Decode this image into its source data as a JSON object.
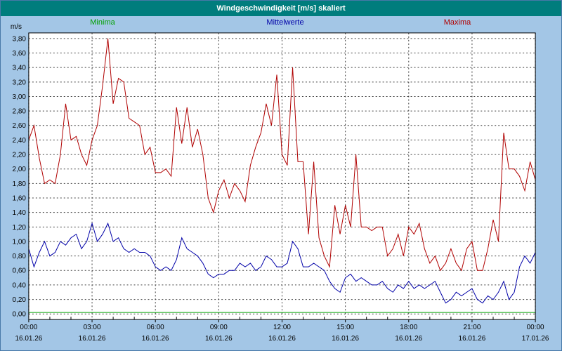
{
  "window": {
    "title": "Windgeschwindigkeit [m/s] skaliert"
  },
  "colors": {
    "titlebar_bg": "#007d7d",
    "titlebar_text": "#ffffff",
    "window_bg": "#a3c6e6",
    "window_border": "#4878a8",
    "plot_bg": "#ffffff",
    "frame": "#000000",
    "grid": "#404040",
    "minima": "#00a000",
    "mittelwerte": "#0000a8",
    "maxima": "#b00000",
    "tick_text": "#000000"
  },
  "chart_data": {
    "type": "line",
    "title": "Windgeschwindigkeit [m/s] skaliert",
    "ylabel_unit": "m/s",
    "ylim": [
      0,
      3.8
    ],
    "y_tick_step": 0.2,
    "y_tick_labels": [
      "0,00",
      "0,20",
      "0,40",
      "0,60",
      "0,80",
      "1,00",
      "1,20",
      "1,40",
      "1,60",
      "1,80",
      "2,00",
      "2,20",
      "2,40",
      "2,60",
      "2,80",
      "3,00",
      "3,20",
      "3,40",
      "3,60",
      "3,80"
    ],
    "x_range_hours": [
      0,
      24
    ],
    "x_major_step_hours": 3,
    "x_minor_step_hours": 1,
    "x_time_labels": [
      "00:00",
      "03:00",
      "06:00",
      "09:00",
      "12:00",
      "15:00",
      "18:00",
      "21:00",
      "00:00"
    ],
    "x_date_labels": [
      "16.01.26",
      "16.01.26",
      "16.01.26",
      "16.01.26",
      "16.01.26",
      "16.01.26",
      "16.01.26",
      "16.01.26",
      "17.01.26"
    ],
    "sample_step_hours": 0.25,
    "grid": "dashed",
    "legend_position": "top",
    "series": [
      {
        "name": "Minima",
        "color": "#00a000",
        "constant": 0.02
      },
      {
        "name": "Mittelwerte",
        "color": "#0000a8",
        "values": [
          0.9,
          0.65,
          0.85,
          1.0,
          0.8,
          0.85,
          1.0,
          0.95,
          1.05,
          1.1,
          0.9,
          1.0,
          1.25,
          1.0,
          1.1,
          1.25,
          1.0,
          1.05,
          0.9,
          0.85,
          0.9,
          0.85,
          0.85,
          0.8,
          0.65,
          0.6,
          0.65,
          0.6,
          0.75,
          1.05,
          0.9,
          0.85,
          0.8,
          0.7,
          0.55,
          0.5,
          0.55,
          0.55,
          0.6,
          0.6,
          0.7,
          0.65,
          0.7,
          0.6,
          0.65,
          0.8,
          0.75,
          0.65,
          0.65,
          0.7,
          1.0,
          0.9,
          0.65,
          0.65,
          0.7,
          0.65,
          0.6,
          0.45,
          0.35,
          0.3,
          0.5,
          0.55,
          0.45,
          0.5,
          0.45,
          0.4,
          0.4,
          0.45,
          0.35,
          0.3,
          0.4,
          0.35,
          0.45,
          0.35,
          0.4,
          0.35,
          0.4,
          0.45,
          0.3,
          0.15,
          0.2,
          0.3,
          0.25,
          0.3,
          0.35,
          0.2,
          0.15,
          0.25,
          0.2,
          0.3,
          0.45,
          0.2,
          0.3,
          0.65,
          0.8,
          0.7,
          0.85
        ]
      },
      {
        "name": "Maxima",
        "color": "#b00000",
        "values": [
          2.4,
          2.6,
          2.15,
          1.8,
          1.85,
          1.8,
          2.2,
          2.9,
          2.4,
          2.45,
          2.2,
          2.05,
          2.4,
          2.6,
          3.15,
          3.8,
          2.9,
          3.25,
          3.2,
          2.7,
          2.65,
          2.6,
          2.2,
          2.3,
          1.95,
          1.95,
          2.0,
          1.9,
          2.85,
          2.35,
          2.85,
          2.3,
          2.55,
          2.2,
          1.6,
          1.4,
          1.7,
          1.85,
          1.6,
          1.8,
          1.7,
          1.55,
          2.05,
          2.3,
          2.5,
          2.9,
          2.6,
          3.3,
          2.2,
          2.05,
          3.4,
          2.1,
          2.1,
          1.1,
          2.1,
          1.05,
          0.8,
          0.65,
          1.5,
          1.1,
          1.5,
          1.2,
          2.2,
          1.2,
          1.2,
          1.15,
          1.2,
          1.2,
          0.8,
          0.9,
          1.1,
          0.8,
          1.2,
          1.1,
          1.25,
          0.9,
          0.7,
          0.8,
          0.6,
          0.7,
          0.9,
          0.7,
          0.6,
          0.9,
          1.0,
          0.6,
          0.6,
          0.9,
          1.3,
          1.0,
          2.5,
          2.0,
          2.0,
          1.9,
          1.7,
          2.1,
          1.85
        ]
      }
    ]
  }
}
